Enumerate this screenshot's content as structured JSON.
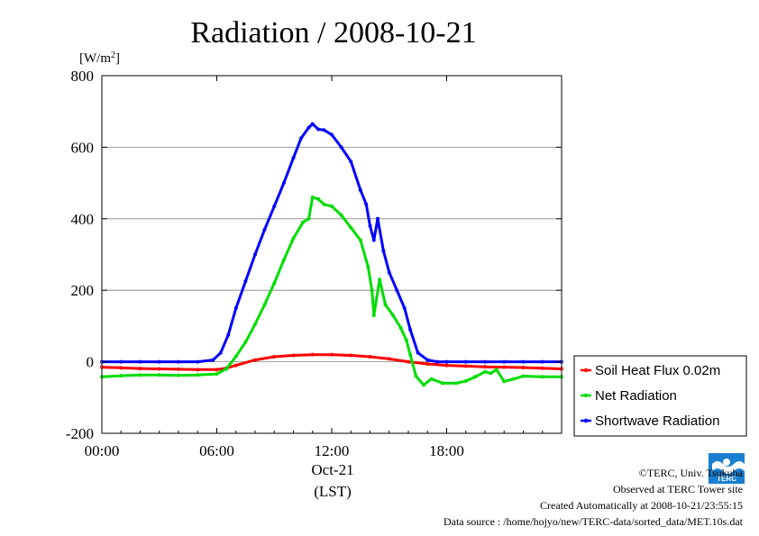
{
  "chart_data": {
    "type": "line",
    "title": "Radiation / 2008-10-21",
    "ylabel_unit": "[W/m",
    "ylabel_unit_sup": "2",
    "ylabel_unit_close": "]",
    "xlabel_date": "Oct-21",
    "xlabel": "(LST)",
    "ylim": [
      -200,
      800
    ],
    "xlim": [
      0,
      24
    ],
    "yticks": [
      {
        "v": 800,
        "label": "800"
      },
      {
        "v": 600,
        "label": "600"
      },
      {
        "v": 400,
        "label": "400"
      },
      {
        "v": 200,
        "label": "200"
      },
      {
        "v": 0,
        "label": "0"
      },
      {
        "v": -200,
        "label": "-200"
      }
    ],
    "xticks": [
      {
        "v": 0,
        "label": "00:00"
      },
      {
        "v": 6,
        "label": "06:00"
      },
      {
        "v": 12,
        "label": "12:00"
      },
      {
        "v": 18,
        "label": "18:00"
      }
    ],
    "grid": true,
    "legend_position": "outside-right",
    "series": [
      {
        "name": "Soil Heat Flux 0.02m",
        "color": "#ff0000",
        "x": [
          0,
          1,
          2,
          3,
          4,
          5,
          6,
          6.5,
          7,
          8,
          9,
          10,
          11,
          12,
          13,
          14,
          15,
          16,
          17,
          18,
          19,
          20,
          21,
          22,
          23,
          24
        ],
        "y": [
          -15,
          -17,
          -19,
          -20,
          -21,
          -22,
          -22,
          -18,
          -10,
          5,
          14,
          18,
          20,
          20,
          18,
          14,
          8,
          0,
          -6,
          -10,
          -12,
          -14,
          -15,
          -16,
          -18,
          -20
        ]
      },
      {
        "name": "Net Radiation",
        "color": "#00dd00",
        "x": [
          0,
          1,
          2,
          3,
          4,
          5,
          6,
          6.5,
          7,
          7.5,
          8,
          8.5,
          9,
          9.5,
          10,
          10.5,
          10.8,
          11,
          11.3,
          11.6,
          12,
          12.5,
          13,
          13.5,
          13.9,
          14.1,
          14.2,
          14.5,
          14.8,
          15.2,
          15.6,
          15.9,
          16.1,
          16.4,
          16.8,
          17.2,
          17.8,
          18.5,
          19,
          19.5,
          20,
          20.3,
          20.6,
          21,
          21.5,
          22,
          23,
          24
        ],
        "y": [
          -42,
          -39,
          -37,
          -37,
          -38,
          -37,
          -34,
          -20,
          15,
          55,
          105,
          160,
          220,
          285,
          345,
          390,
          400,
          460,
          455,
          440,
          435,
          410,
          375,
          340,
          265,
          200,
          130,
          230,
          160,
          130,
          95,
          60,
          20,
          -40,
          -65,
          -48,
          -60,
          -60,
          -54,
          -42,
          -28,
          -32,
          -22,
          -55,
          -48,
          -40,
          -42,
          -42
        ]
      },
      {
        "name": "Shortwave Radiation",
        "color": "#0000ff",
        "x": [
          0,
          1,
          2,
          3,
          4,
          5,
          5.8,
          6.2,
          6.6,
          7,
          7.5,
          8,
          8.5,
          9,
          9.5,
          10,
          10.4,
          10.8,
          11,
          11.3,
          11.6,
          12,
          12.5,
          13,
          13.5,
          13.8,
          14,
          14.2,
          14.4,
          14.7,
          15,
          15.4,
          15.8,
          16.1,
          16.5,
          17,
          17.5,
          18,
          19,
          20,
          21,
          22,
          23,
          24
        ],
        "y": [
          0,
          0,
          0,
          0,
          0,
          0,
          5,
          25,
          75,
          150,
          225,
          300,
          370,
          435,
          500,
          570,
          625,
          655,
          665,
          650,
          648,
          635,
          600,
          560,
          480,
          440,
          380,
          340,
          400,
          310,
          250,
          200,
          150,
          90,
          25,
          5,
          0,
          0,
          0,
          0,
          0,
          0,
          0,
          0
        ]
      }
    ]
  },
  "footer": {
    "copyright": "©TERC, Univ. Tsukuba",
    "observed": "Observed at TERC Tower site",
    "created": "Created Automatically at 2008-10-21/23:55:15",
    "source": "Data source : /home/hojyo/new/TERC-data/sorted_data/MET.10s.dat"
  },
  "logo": {
    "text": "TERC",
    "color": "#0077cc"
  }
}
